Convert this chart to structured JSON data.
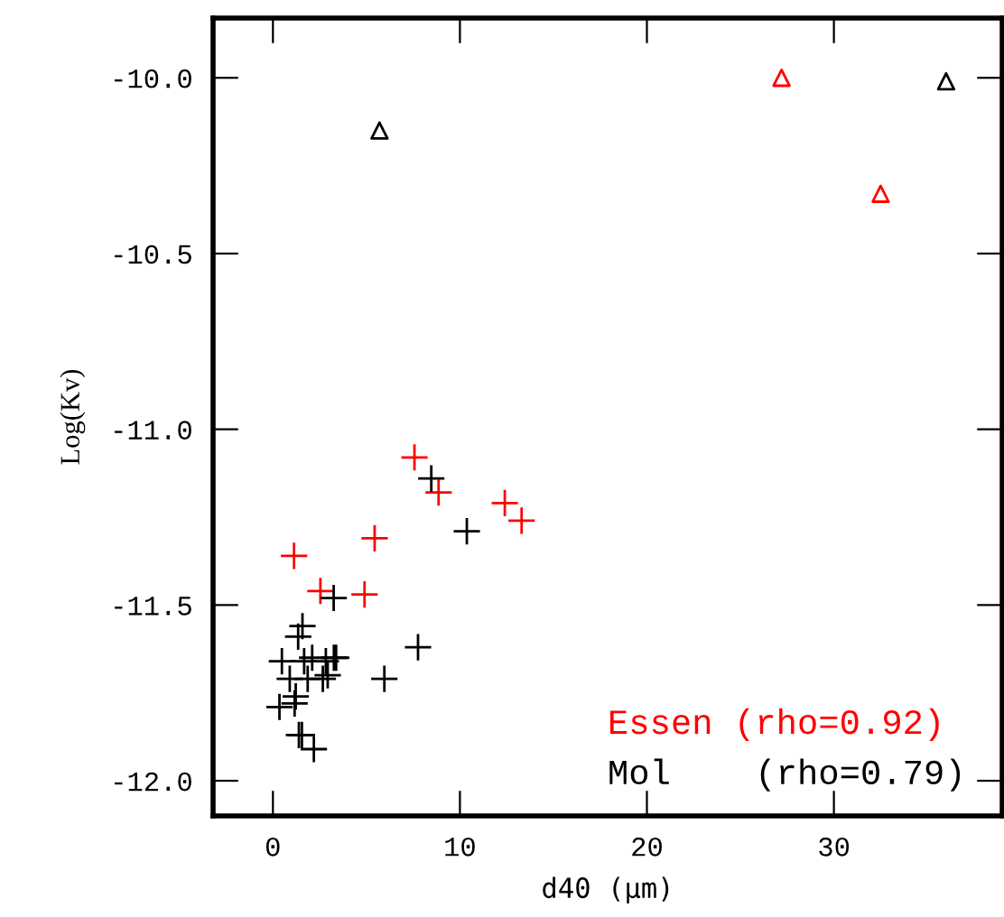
{
  "chart_data": {
    "type": "scatter",
    "xlabel": "d40 (µm)",
    "ylabel": "Log(Kv)",
    "xlim": [
      -3.2,
      39.0
    ],
    "xticks": [
      0,
      10,
      20,
      30
    ],
    "ylim": [
      -12.1,
      -9.83
    ],
    "yticks": [
      {
        "value": -12.0,
        "label": "-12.0"
      },
      {
        "value": -11.5,
        "label": "-11.5"
      },
      {
        "value": -11.0,
        "label": "-11.0"
      },
      {
        "value": -10.5,
        "label": "-10.5"
      },
      {
        "value": -10.0,
        "label": "-10.0"
      }
    ],
    "grid": false,
    "legend": "bottom right",
    "series": [
      {
        "name": "Essen (rho=0.92)",
        "color": "#ff0000",
        "marker": "cross",
        "x": [
          1.13,
          7.57,
          8.86,
          12.4,
          13.3,
          5.44,
          2.54,
          4.9
        ],
        "values": [
          -11.36,
          -11.08,
          -11.18,
          -11.21,
          -11.26,
          -11.31,
          -11.46,
          -11.47
        ]
      },
      {
        "color": "#ff0000",
        "marker": "triangle",
        "x": [
          27.2,
          32.5
        ],
        "values": [
          -10.0,
          -10.33
        ]
      },
      {
        "name": "Mol    (rho=0.79)",
        "color": "#000000",
        "marker": "cross",
        "x": [
          8.47,
          10.37,
          3.25,
          1.58,
          1.35,
          7.76,
          0.48,
          2.1,
          3.26,
          3.38,
          1.67,
          2.83,
          0.9,
          1.86,
          2.67,
          2.93,
          5.96,
          1.22,
          0.35,
          1.16,
          1.39,
          1.55,
          2.19
        ],
        "values": [
          -11.14,
          -11.29,
          -11.48,
          -11.56,
          -11.59,
          -11.62,
          -11.66,
          -11.65,
          -11.65,
          -11.65,
          -11.66,
          -11.66,
          -11.71,
          -11.71,
          -11.71,
          -11.7,
          -11.71,
          -11.76,
          -11.79,
          -11.78,
          -11.87,
          -11.87,
          -11.91
        ]
      },
      {
        "color": "#000000",
        "marker": "triangle",
        "x": [
          5.7,
          36.0
        ],
        "values": [
          -10.15,
          -10.01
        ]
      }
    ]
  }
}
